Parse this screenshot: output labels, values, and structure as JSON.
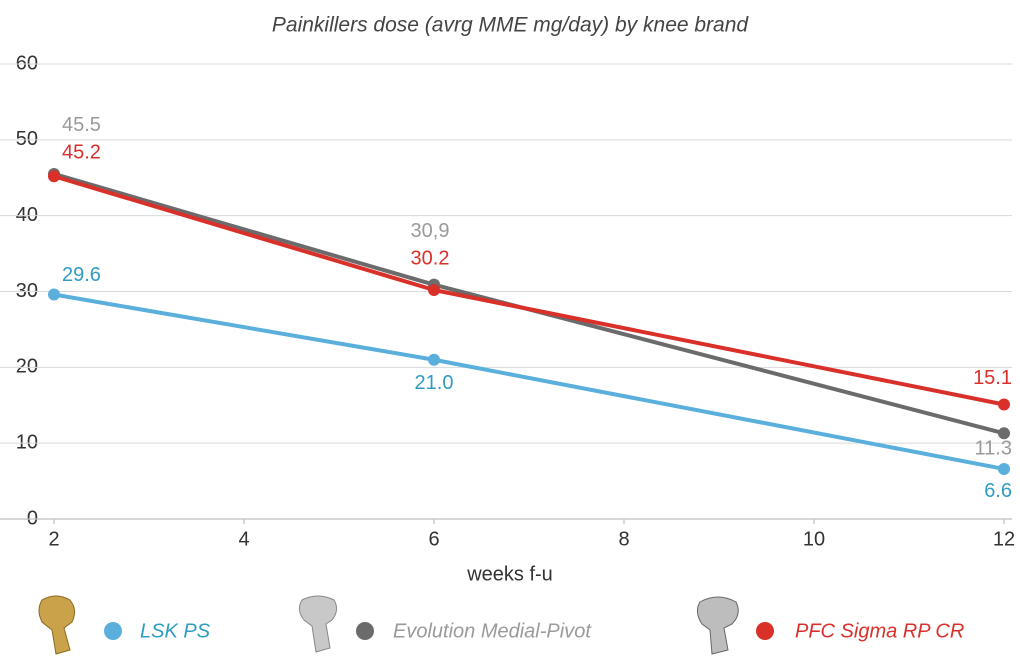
{
  "chart_data": {
    "type": "line",
    "title": "Painkillers dose (avrg MME mg/day) by knee brand",
    "x_label": "weeks f-u",
    "x": [
      2,
      6,
      12
    ],
    "xlim": [
      2,
      12
    ],
    "xticks": [
      2,
      4,
      6,
      8,
      10,
      12
    ],
    "ylim": [
      0,
      60
    ],
    "yticks": [
      0,
      10,
      20,
      30,
      40,
      50,
      60
    ],
    "grid": true,
    "legend": "bottom",
    "series": [
      {
        "name": "LSK PS",
        "color": "#5aafdc",
        "label_color": "#2f9cc4",
        "values": [
          29.6,
          21.0,
          6.6
        ],
        "value_labels": [
          "29.6",
          "21.0",
          "6.6"
        ]
      },
      {
        "name": "Evolution Medial-Pivot",
        "color": "#6b6b6b",
        "label_color": "#9a9a9a",
        "values": [
          45.5,
          30.9,
          11.3
        ],
        "value_labels": [
          "45.5",
          "30,9",
          "11.3"
        ]
      },
      {
        "name": "PFC Sigma RP CR",
        "color": "#d9302a",
        "label_color": "#d9302a",
        "values": [
          45.2,
          30.2,
          15.1
        ],
        "value_labels": [
          "45.2",
          "30.2",
          "15.1"
        ]
      }
    ]
  }
}
